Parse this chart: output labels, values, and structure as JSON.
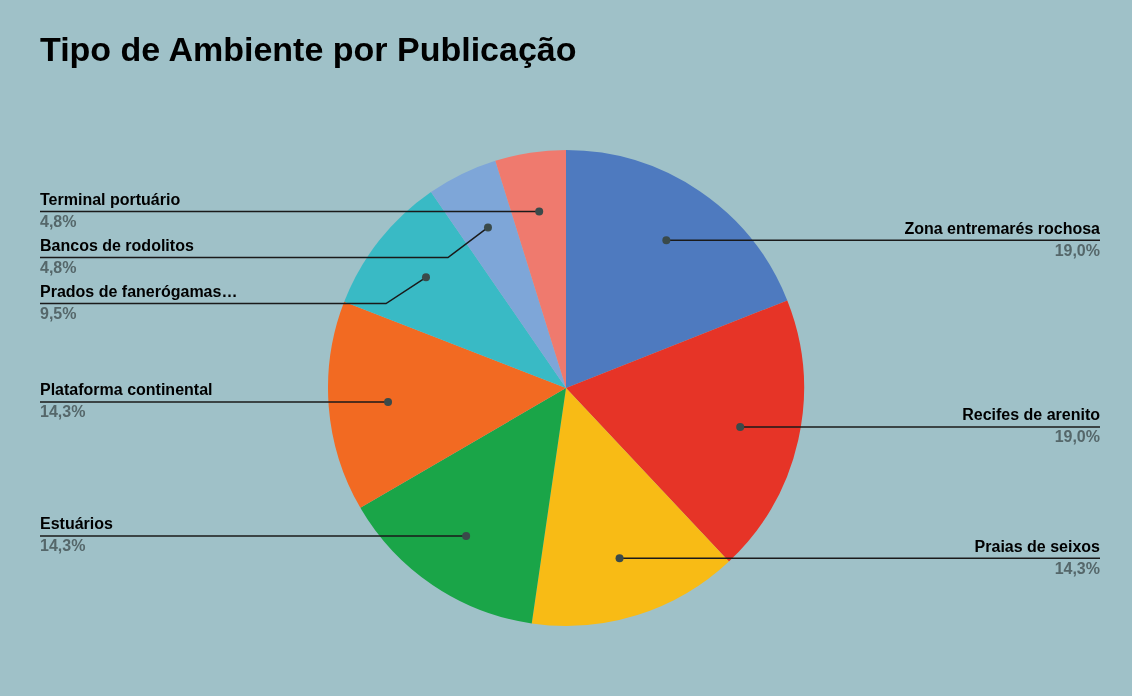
{
  "chart_data": {
    "type": "pie",
    "title": "Tipo de Ambiente por Publicação",
    "categories": [
      "Zona entremarés rochosa",
      "Recifes de arenito",
      "Praias de seixos",
      "Estuários",
      "Plataforma continental",
      "Prados de fanerógamas…",
      "Bancos de rodolitos",
      "Terminal portuário"
    ],
    "values": [
      19.0,
      19.0,
      14.3,
      14.3,
      14.3,
      9.5,
      4.8,
      4.8
    ],
    "value_labels": [
      "19,0%",
      "19,0%",
      "14,3%",
      "14,3%",
      "14,3%",
      "9,5%",
      "4,8%",
      "4,8%"
    ],
    "colors": [
      "#4e7abf",
      "#e63427",
      "#f8bb15",
      "#1aa548",
      "#f26a22",
      "#39bac5",
      "#7ea6d8",
      "#ef7a6e"
    ],
    "legend": false
  }
}
